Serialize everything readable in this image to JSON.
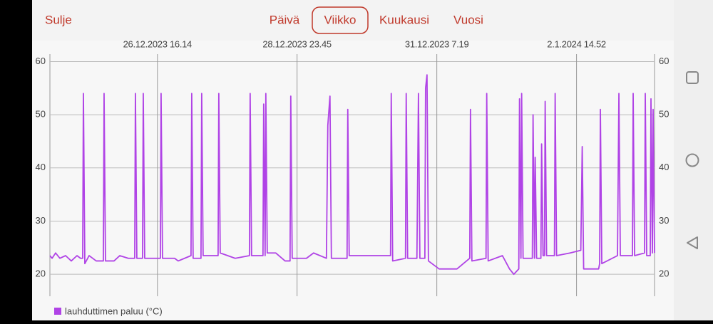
{
  "ui": {
    "close": "Sulje",
    "tabs": [
      "Päivä",
      "Viikko",
      "Kuukausi",
      "Vuosi"
    ],
    "selected_tab": "Viikko"
  },
  "chart_data": {
    "type": "line",
    "x": [
      "2023-12-24T21:29",
      "2023-12-24T22:20",
      "2023-12-24T23:45",
      "2023-12-25T01:27",
      "2023-12-25T03:43",
      "2023-12-25T05:59",
      "2023-12-25T08:15",
      "2023-12-25T09:40",
      "2023-12-25T10:31",
      "2023-12-25T10:48",
      "2023-12-25T11:22",
      "2023-12-25T13:04",
      "2023-12-25T15:54",
      "2023-12-25T18:44",
      "2023-12-25T19:01",
      "2023-12-25T19:35",
      "2023-12-25T22:59",
      "2023-12-26T01:15",
      "2023-12-26T04:39",
      "2023-12-26T07:12",
      "2023-12-26T07:29",
      "2023-12-26T08:03",
      "2023-12-26T10:19",
      "2023-12-26T10:36",
      "2023-12-26T11:10",
      "2023-12-26T14:34",
      "2023-12-26T17:24",
      "2023-12-26T17:41",
      "2023-12-26T18:15",
      "2023-12-26T23:04",
      "2023-12-27T00:29",
      "2023-12-27T05:35",
      "2023-12-27T05:52",
      "2023-12-27T06:26",
      "2023-12-27T09:33",
      "2023-12-27T09:50",
      "2023-12-27T10:24",
      "2023-12-27T14:39",
      "2023-12-27T16:21",
      "2023-12-27T16:38",
      "2023-12-27T17:12",
      "2023-12-27T23:09",
      "2023-12-28T04:49",
      "2023-12-28T05:06",
      "2023-12-28T05:40",
      "2023-12-28T10:12",
      "2023-12-28T10:29",
      "2023-12-28T11:03",
      "2023-12-28T11:20",
      "2023-12-28T11:54",
      "2023-12-28T15:18",
      "2023-12-28T18:59",
      "2023-12-28T20:58",
      "2023-12-28T21:15",
      "2023-12-28T21:49",
      "2023-12-29T03:29",
      "2023-12-29T06:19",
      "2023-12-29T11:25",
      "2023-12-29T11:59",
      "2023-12-29T12:50",
      "2023-12-29T13:24",
      "2023-12-29T19:38",
      "2023-12-29T19:55",
      "2023-12-29T20:29",
      "2023-12-30T04:59",
      "2023-12-30T12:55",
      "2023-12-30T13:12",
      "2023-12-30T13:46",
      "2023-12-30T18:52",
      "2023-12-30T19:09",
      "2023-12-30T19:43",
      "2023-12-30T23:24",
      "2023-12-31T00:01",
      "2023-12-31T00:35",
      "2023-12-31T02:34",
      "2023-12-31T02:51",
      "2023-12-31T03:25",
      "2023-12-31T03:59",
      "2023-12-31T08:14",
      "2023-12-31T15:19",
      "2023-12-31T20:25",
      "2023-12-31T20:42",
      "2023-12-31T21:16",
      "2024-01-01T02:53",
      "2024-01-01T03:10",
      "2024-01-01T03:44",
      "2024-01-01T09:24",
      "2024-01-01T12:14",
      "2024-01-01T13:56",
      "2024-01-01T15:55",
      "2024-01-01T16:12",
      "2024-01-01T16:46",
      "2024-01-01T17:03",
      "2024-01-01T17:37",
      "2024-01-01T21:18",
      "2024-01-01T21:35",
      "2024-01-01T22:09",
      "2024-01-01T22:26",
      "2024-01-01T23:00",
      "2024-01-02T00:42",
      "2024-01-02T00:59",
      "2024-01-02T01:33",
      "2024-01-02T02:07",
      "2024-01-02T02:24",
      "2024-01-02T02:58",
      "2024-01-02T06:05",
      "2024-01-02T06:22",
      "2024-01-02T06:56",
      "2024-01-02T12:19",
      "2024-01-02T16:34",
      "2024-01-02T17:08",
      "2024-01-02T17:42",
      "2024-01-02T23:39",
      "2024-01-03T00:04",
      "2024-01-03T00:21",
      "2024-01-03T00:55",
      "2024-01-03T07:09",
      "2024-01-03T07:43",
      "2024-01-03T08:17",
      "2024-01-03T13:06",
      "2024-01-03T13:23",
      "2024-01-03T13:57",
      "2024-01-03T17:55",
      "2024-01-03T18:12",
      "2024-01-03T18:46",
      "2024-01-03T20:11",
      "2024-01-03T20:28",
      "2024-01-03T21:02",
      "2024-01-03T21:19",
      "2024-01-03T21:53"
    ],
    "series": [
      {
        "name": "lauhduttimen paluu (°C)",
        "color": "#b043e6",
        "values": [
          23.5,
          23,
          24,
          23,
          23.5,
          22.5,
          23.5,
          23,
          23,
          54,
          22,
          23.5,
          22.5,
          22.5,
          54,
          22.5,
          22.5,
          23.5,
          23,
          23,
          54,
          23,
          23,
          54,
          23,
          23,
          23,
          54,
          23,
          23,
          22.5,
          23.5,
          54,
          23,
          23,
          54,
          23.5,
          23.5,
          23.5,
          54,
          24,
          23,
          23.5,
          54,
          23.5,
          23.5,
          52,
          23.5,
          54,
          24,
          24,
          22.5,
          22.5,
          53.5,
          23,
          23,
          24,
          23,
          48,
          53.5,
          23,
          23,
          51,
          23.5,
          23.5,
          23.5,
          54,
          22.5,
          23,
          54,
          23,
          23,
          54,
          23,
          23,
          55,
          57.5,
          22.5,
          21,
          21,
          23,
          51,
          22.5,
          23,
          54,
          22.5,
          23.5,
          21,
          20,
          21,
          53,
          23,
          54,
          23,
          23,
          50,
          23,
          42,
          23,
          23,
          44.5,
          23.5,
          23.5,
          52.5,
          23.5,
          23.5,
          54,
          23.5,
          24,
          24.5,
          44,
          21,
          21,
          22,
          51,
          22,
          23.5,
          54,
          23.5,
          23.5,
          54,
          23.5,
          24,
          54,
          23.5,
          23.5,
          53,
          24,
          51,
          24
        ]
      }
    ],
    "xlim": [
      "2023-12-24T21:29",
      "2024-01-03T21:53"
    ],
    "xticks": [
      {
        "value": "2023-12-26T16:14",
        "label": "26.12.2023 16.14"
      },
      {
        "value": "2023-12-28T23:45",
        "label": "28.12.2023 23.45"
      },
      {
        "value": "2023-12-31T07:19",
        "label": "31.12.2023 7.19"
      },
      {
        "value": "2024-01-02T14:52",
        "label": "2.1.2024 14.52"
      }
    ],
    "ylim": [
      16,
      61.4
    ],
    "yticks": [
      20,
      30,
      40,
      50,
      60
    ],
    "grid": true,
    "legend": "bottom-left"
  }
}
